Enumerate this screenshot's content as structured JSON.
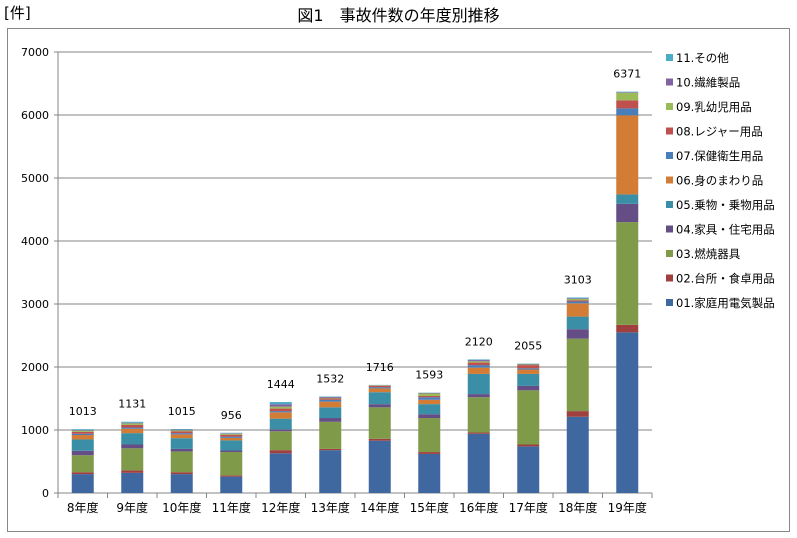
{
  "header": {
    "title": "図1　事故件数の年度別推移",
    "unit": "[件]"
  },
  "chart_data": {
    "type": "bar",
    "stacked": true,
    "title": "図1　事故件数の年度別推移",
    "ylabel": "[件]",
    "xlabel": "",
    "ylim": [
      0,
      7000
    ],
    "yticks": [
      0,
      1000,
      2000,
      3000,
      4000,
      5000,
      6000,
      7000
    ],
    "grid": true,
    "legend": "right",
    "categories": [
      "8年度",
      "9年度",
      "10年度",
      "11年度",
      "12年度",
      "13年度",
      "14年度",
      "15年度",
      "16年度",
      "17年度",
      "18年度",
      "19年度"
    ],
    "totals": [
      1013,
      1131,
      1015,
      956,
      1444,
      1532,
      1716,
      1593,
      2120,
      2055,
      3103,
      6371
    ],
    "series": [
      {
        "name": "01.家庭用電気製品",
        "color": "#4068A0",
        "values": [
          300,
          320,
          300,
          260,
          630,
          680,
          830,
          620,
          940,
          740,
          1210,
          2550
        ]
      },
      {
        "name": "02.台所・食卓用品",
        "color": "#A0403E",
        "values": [
          30,
          40,
          30,
          20,
          50,
          20,
          30,
          30,
          20,
          30,
          90,
          120
        ]
      },
      {
        "name": "03.燃焼器具",
        "color": "#7F9A48",
        "values": [
          270,
          350,
          330,
          370,
          300,
          430,
          500,
          540,
          560,
          860,
          1150,
          1630
        ]
      },
      {
        "name": "04.家具・住宅用品",
        "color": "#654D86",
        "values": [
          70,
          60,
          40,
          25,
          30,
          60,
          50,
          60,
          50,
          70,
          150,
          290
        ]
      },
      {
        "name": "05.乗物・乗物用品",
        "color": "#3A8EA5",
        "values": [
          180,
          180,
          170,
          160,
          170,
          170,
          190,
          160,
          320,
          190,
          200,
          150
        ]
      },
      {
        "name": "06.身のまわり品",
        "color": "#D37C35",
        "values": [
          70,
          70,
          60,
          40,
          100,
          90,
          60,
          70,
          100,
          70,
          210,
          1255
        ]
      },
      {
        "name": "07.保健衛生用品",
        "color": "#4A7EBB",
        "values": [
          20,
          20,
          20,
          20,
          20,
          30,
          20,
          40,
          40,
          20,
          30,
          110
        ]
      },
      {
        "name": "08.レジャー用品",
        "color": "#C0504D",
        "values": [
          30,
          40,
          30,
          30,
          40,
          20,
          20,
          20,
          40,
          50,
          20,
          128
        ]
      },
      {
        "name": "09.乳幼児用品",
        "color": "#9BBB59",
        "values": [
          20,
          25,
          15,
          15,
          30,
          10,
          10,
          40,
          20,
          10,
          20,
          120
        ]
      },
      {
        "name": "10.繊維製品",
        "color": "#8064A2",
        "values": [
          10,
          10,
          10,
          8,
          40,
          15,
          5,
          10,
          20,
          10,
          10,
          10
        ]
      },
      {
        "name": "11.その他",
        "color": "#4BACC6",
        "values": [
          13,
          16,
          10,
          8,
          34,
          7,
          1,
          3,
          10,
          5,
          13,
          8
        ]
      }
    ]
  }
}
